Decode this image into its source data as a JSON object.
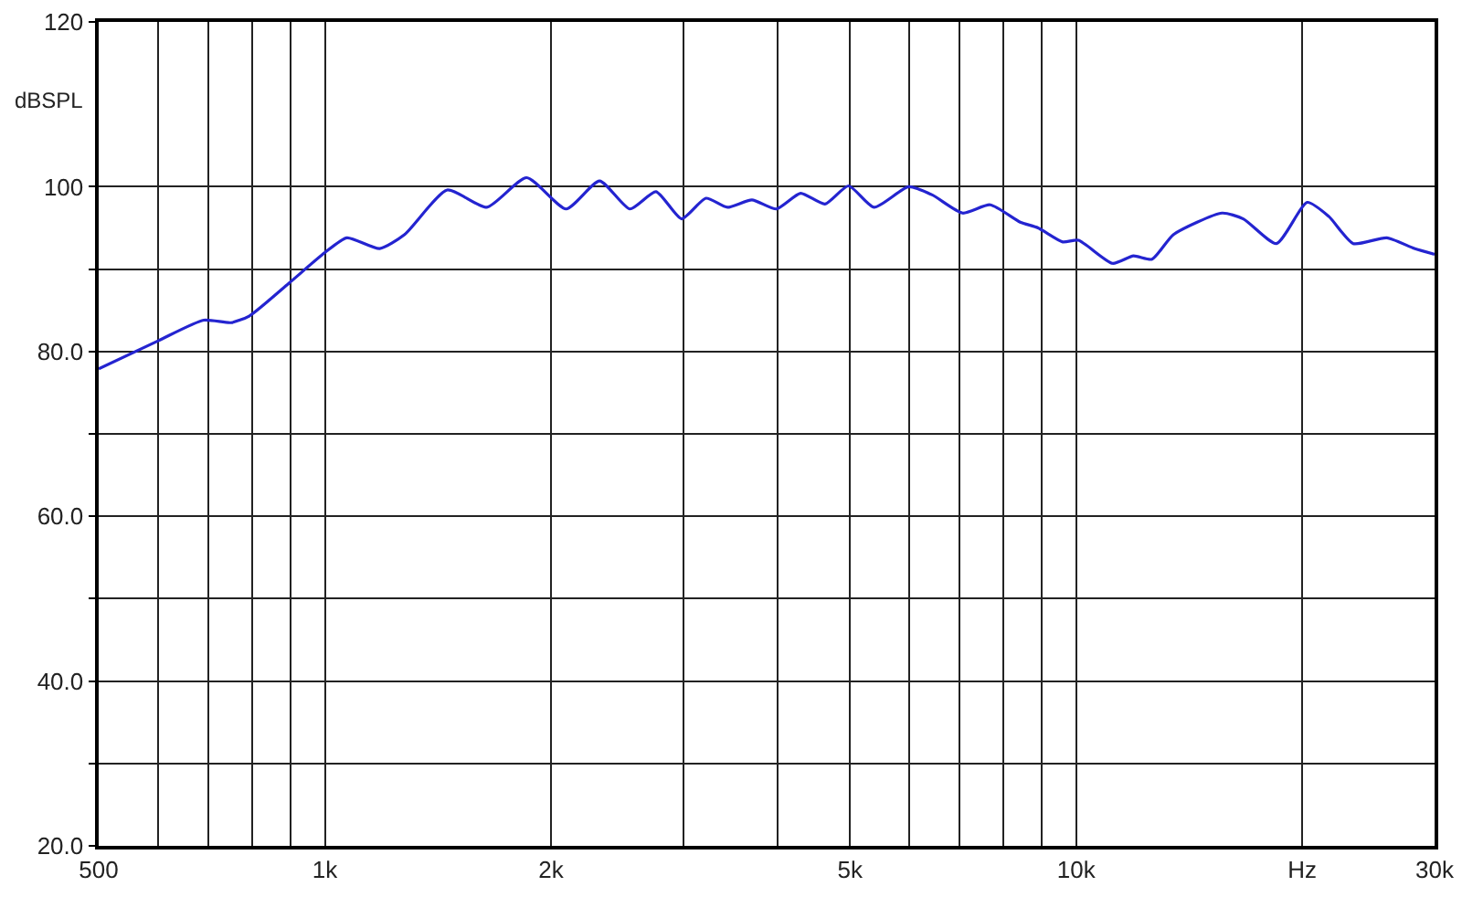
{
  "chart_data": {
    "type": "line",
    "ylabel": "dBSPL",
    "log": "x",
    "grid": true,
    "marker": "none",
    "line_style": "solid",
    "xlim": [
      500,
      30000
    ],
    "ylim": [
      20,
      120
    ],
    "xticks": [
      {
        "value": 500,
        "label": "500"
      },
      {
        "value": 600,
        "label": null
      },
      {
        "value": 700,
        "label": null
      },
      {
        "value": 800,
        "label": null
      },
      {
        "value": 900,
        "label": null
      },
      {
        "value": 1000,
        "label": "1k"
      },
      {
        "value": 2000,
        "label": "2k"
      },
      {
        "value": 3000,
        "label": null
      },
      {
        "value": 4000,
        "label": null
      },
      {
        "value": 5000,
        "label": "5k"
      },
      {
        "value": 6000,
        "label": null
      },
      {
        "value": 7000,
        "label": null
      },
      {
        "value": 8000,
        "label": null
      },
      {
        "value": 9000,
        "label": null
      },
      {
        "value": 10000,
        "label": "10k"
      },
      {
        "value": 20000,
        "label": "Hz"
      },
      {
        "value": 30000,
        "label": "30k"
      }
    ],
    "yticks": [
      {
        "value": 20,
        "label": "20.0"
      },
      {
        "value": 30,
        "label": null
      },
      {
        "value": 40,
        "label": "40.0"
      },
      {
        "value": 50,
        "label": null
      },
      {
        "value": 60,
        "label": "60.0"
      },
      {
        "value": 70,
        "label": null
      },
      {
        "value": 80,
        "label": "80.0"
      },
      {
        "value": 90,
        "label": null
      },
      {
        "value": 100,
        "label": "100"
      },
      {
        "value": 120,
        "label": "120"
      }
    ],
    "series": [
      {
        "color": "#2424d0",
        "x": [
          500,
          600,
          690,
          750,
          793,
          896,
          1000,
          1070,
          1183,
          1277,
          1455,
          1643,
          1856,
          2095,
          2321,
          2547,
          2759,
          2985,
          3215,
          3434,
          3702,
          3990,
          4298,
          4631,
          4977,
          5384,
          5985,
          6434,
          7062,
          7683,
          8426,
          8898,
          9596,
          10070,
          11180,
          11920,
          12620,
          13480,
          15640,
          16690,
          18480,
          20300,
          21690,
          23380,
          25910,
          28190,
          30000
        ],
        "values": [
          77.9,
          81.3,
          83.8,
          83.5,
          84.3,
          88.3,
          92,
          93.8,
          92.5,
          94.2,
          99.6,
          97.5,
          101.1,
          97.3,
          100.7,
          97.3,
          99.4,
          96.1,
          98.6,
          97.5,
          98.4,
          97.3,
          99.2,
          97.9,
          100.1,
          97.5,
          100,
          99,
          96.8,
          97.8,
          95.7,
          95,
          93.3,
          93.5,
          90.7,
          91.6,
          91.2,
          94.2,
          96.8,
          96.1,
          93.1,
          98.1,
          96.4,
          93.1,
          93.8,
          92.5,
          91.8
        ]
      }
    ]
  }
}
